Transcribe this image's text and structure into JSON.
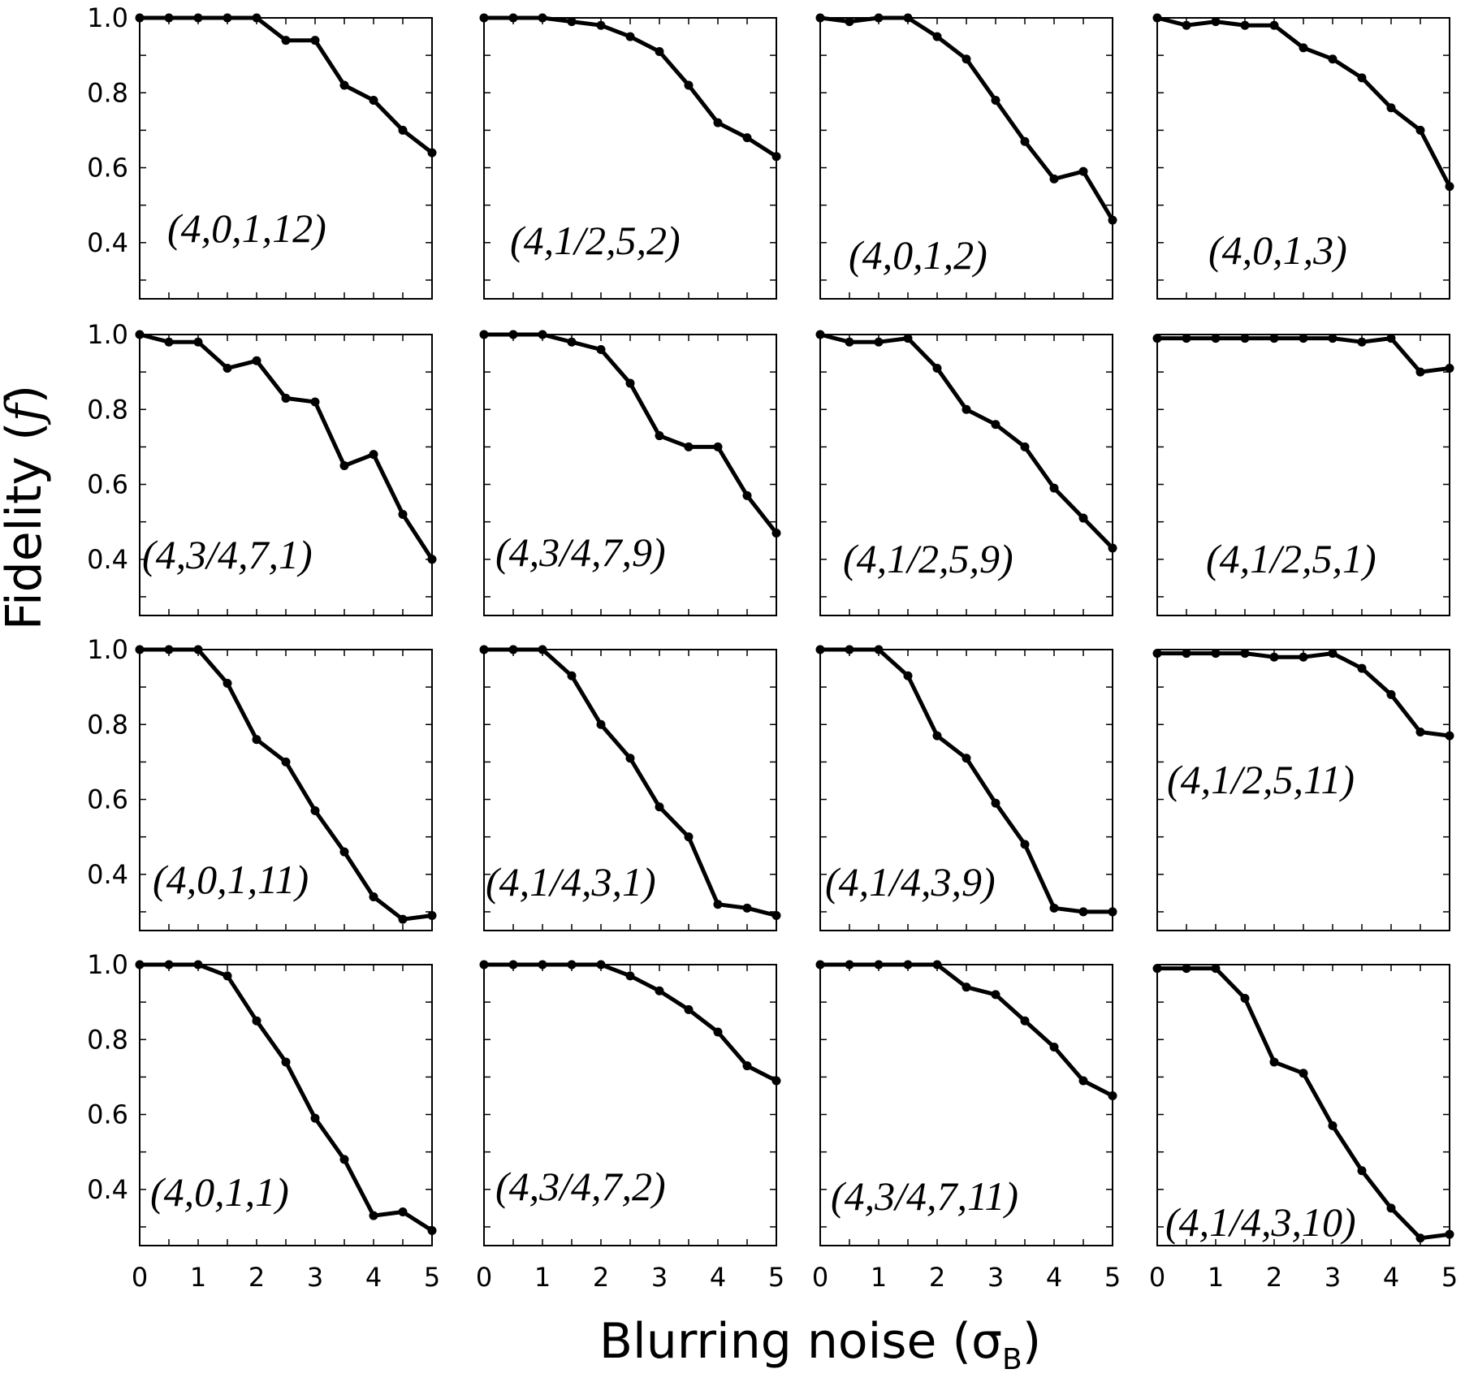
{
  "figure": {
    "ylabel_text": "Fidelity (",
    "ylabel_symbol": "f",
    "ylabel_close": ")",
    "xlabel_text": "Blurring noise (σ",
    "xlabel_sub": "B",
    "xlabel_close": ")",
    "y_ticks": [
      "1.0",
      "0.8",
      "0.6",
      "0.4"
    ],
    "x_ticks": [
      "0",
      "1",
      "2",
      "3",
      "4",
      "5"
    ]
  },
  "chart_data": [
    {
      "type": "line",
      "label": "(4,0,1,12)",
      "x": [
        0,
        0.5,
        1,
        1.5,
        2,
        2.5,
        3,
        3.5,
        4,
        4.5,
        5
      ],
      "values": [
        1.0,
        1.0,
        1.0,
        1.0,
        1.0,
        0.94,
        0.94,
        0.82,
        0.78,
        0.7,
        0.64
      ],
      "xlim": [
        0,
        5
      ],
      "ylim": [
        0.25,
        1.0
      ]
    },
    {
      "type": "line",
      "label": "(4,1/2,5,2)",
      "x": [
        0,
        0.5,
        1,
        1.5,
        2,
        2.5,
        3,
        3.5,
        4,
        4.5,
        5
      ],
      "values": [
        1.0,
        1.0,
        1.0,
        0.99,
        0.98,
        0.95,
        0.91,
        0.82,
        0.72,
        0.68,
        0.63
      ],
      "xlim": [
        0,
        5
      ],
      "ylim": [
        0.25,
        1.0
      ]
    },
    {
      "type": "line",
      "label": "(4,0,1,2)",
      "x": [
        0,
        0.5,
        1,
        1.5,
        2,
        2.5,
        3,
        3.5,
        4,
        4.5,
        5
      ],
      "values": [
        1.0,
        0.99,
        1.0,
        1.0,
        0.95,
        0.89,
        0.78,
        0.67,
        0.57,
        0.59,
        0.46
      ],
      "xlim": [
        0,
        5
      ],
      "ylim": [
        0.25,
        1.0
      ]
    },
    {
      "type": "line",
      "label": "(4,0,1,3)",
      "x": [
        0,
        0.5,
        1,
        1.5,
        2,
        2.5,
        3,
        3.5,
        4,
        4.5,
        5
      ],
      "values": [
        1.0,
        0.98,
        0.99,
        0.98,
        0.98,
        0.92,
        0.89,
        0.84,
        0.76,
        0.7,
        0.55
      ],
      "xlim": [
        0,
        5
      ],
      "ylim": [
        0.25,
        1.0
      ]
    },
    {
      "type": "line",
      "label": "(4,3/4,7,1)",
      "x": [
        0,
        0.5,
        1,
        1.5,
        2,
        2.5,
        3,
        3.5,
        4,
        4.5,
        5
      ],
      "values": [
        1.0,
        0.98,
        0.98,
        0.91,
        0.93,
        0.83,
        0.82,
        0.65,
        0.68,
        0.52,
        0.4
      ],
      "xlim": [
        0,
        5
      ],
      "ylim": [
        0.25,
        1.0
      ]
    },
    {
      "type": "line",
      "label": "(4,3/4,7,9)",
      "x": [
        0,
        0.5,
        1,
        1.5,
        2,
        2.5,
        3,
        3.5,
        4,
        4.5,
        5
      ],
      "values": [
        1.0,
        1.0,
        1.0,
        0.98,
        0.96,
        0.87,
        0.73,
        0.7,
        0.7,
        0.57,
        0.47
      ],
      "xlim": [
        0,
        5
      ],
      "ylim": [
        0.25,
        1.0
      ]
    },
    {
      "type": "line",
      "label": "(4,1/2,5,9)",
      "x": [
        0,
        0.5,
        1,
        1.5,
        2,
        2.5,
        3,
        3.5,
        4,
        4.5,
        5
      ],
      "values": [
        1.0,
        0.98,
        0.98,
        0.99,
        0.91,
        0.8,
        0.76,
        0.7,
        0.59,
        0.51,
        0.43
      ],
      "xlim": [
        0,
        5
      ],
      "ylim": [
        0.25,
        1.0
      ]
    },
    {
      "type": "line",
      "label": "(4,1/2,5,1)",
      "x": [
        0,
        0.5,
        1,
        1.5,
        2,
        2.5,
        3,
        3.5,
        4,
        4.5,
        5
      ],
      "values": [
        0.99,
        0.99,
        0.99,
        0.99,
        0.99,
        0.99,
        0.99,
        0.98,
        0.99,
        0.9,
        0.91
      ],
      "xlim": [
        0,
        5
      ],
      "ylim": [
        0.25,
        1.0
      ]
    },
    {
      "type": "line",
      "label": "(4,0,1,11)",
      "x": [
        0,
        0.5,
        1,
        1.5,
        2,
        2.5,
        3,
        3.5,
        4,
        4.5,
        5
      ],
      "values": [
        1.0,
        1.0,
        1.0,
        0.91,
        0.76,
        0.7,
        0.57,
        0.46,
        0.34,
        0.28,
        0.29
      ],
      "xlim": [
        0,
        5
      ],
      "ylim": [
        0.25,
        1.0
      ]
    },
    {
      "type": "line",
      "label": "(4,1/4,3,1)",
      "x": [
        0,
        0.5,
        1,
        1.5,
        2,
        2.5,
        3,
        3.5,
        4,
        4.5,
        5
      ],
      "values": [
        1.0,
        1.0,
        1.0,
        0.93,
        0.8,
        0.71,
        0.58,
        0.5,
        0.32,
        0.31,
        0.29
      ],
      "xlim": [
        0,
        5
      ],
      "ylim": [
        0.25,
        1.0
      ]
    },
    {
      "type": "line",
      "label": "(4,1/4,3,9)",
      "x": [
        0,
        0.5,
        1,
        1.5,
        2,
        2.5,
        3,
        3.5,
        4,
        4.5,
        5
      ],
      "values": [
        1.0,
        1.0,
        1.0,
        0.93,
        0.77,
        0.71,
        0.59,
        0.48,
        0.31,
        0.3,
        0.3
      ],
      "xlim": [
        0,
        5
      ],
      "ylim": [
        0.25,
        1.0
      ]
    },
    {
      "type": "line",
      "label": "(4,1/2,5,11)",
      "x": [
        0,
        0.5,
        1,
        1.5,
        2,
        2.5,
        3,
        3.5,
        4,
        4.5,
        5
      ],
      "values": [
        0.99,
        0.99,
        0.99,
        0.99,
        0.98,
        0.98,
        0.99,
        0.95,
        0.88,
        0.78,
        0.77
      ],
      "xlim": [
        0,
        5
      ],
      "ylim": [
        0.25,
        1.0
      ]
    },
    {
      "type": "line",
      "label": "(4,0,1,1)",
      "x": [
        0,
        0.5,
        1,
        1.5,
        2,
        2.5,
        3,
        3.5,
        4,
        4.5,
        5
      ],
      "values": [
        1.0,
        1.0,
        1.0,
        0.97,
        0.85,
        0.74,
        0.59,
        0.48,
        0.33,
        0.34,
        0.29
      ],
      "xlim": [
        0,
        5
      ],
      "ylim": [
        0.25,
        1.0
      ]
    },
    {
      "type": "line",
      "label": "(4,3/4,7,2)",
      "x": [
        0,
        0.5,
        1,
        1.5,
        2,
        2.5,
        3,
        3.5,
        4,
        4.5,
        5
      ],
      "values": [
        1.0,
        1.0,
        1.0,
        1.0,
        1.0,
        0.97,
        0.93,
        0.88,
        0.82,
        0.73,
        0.69
      ],
      "xlim": [
        0,
        5
      ],
      "ylim": [
        0.25,
        1.0
      ]
    },
    {
      "type": "line",
      "label": "(4,3/4,7,11)",
      "x": [
        0,
        0.5,
        1,
        1.5,
        2,
        2.5,
        3,
        3.5,
        4,
        4.5,
        5
      ],
      "values": [
        1.0,
        1.0,
        1.0,
        1.0,
        1.0,
        0.94,
        0.92,
        0.85,
        0.78,
        0.69,
        0.65
      ],
      "xlim": [
        0,
        5
      ],
      "ylim": [
        0.25,
        1.0
      ]
    },
    {
      "type": "line",
      "label": "(4,1/4,3,10)",
      "x": [
        0,
        0.5,
        1,
        1.5,
        2,
        2.5,
        3,
        3.5,
        4,
        4.5,
        5
      ],
      "values": [
        0.99,
        0.99,
        0.99,
        0.91,
        0.74,
        0.71,
        0.57,
        0.45,
        0.35,
        0.27,
        0.28
      ],
      "xlim": [
        0,
        5
      ],
      "ylim": [
        0.25,
        1.0
      ]
    }
  ]
}
